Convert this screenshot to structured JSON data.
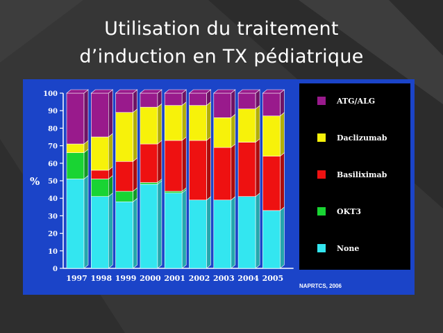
{
  "slide": {
    "title_line1": "Utilisation du traitement",
    "title_line2": "d’induction en TX pédiatrique"
  },
  "colors": {
    "panel_bg": "#1b44c8",
    "legend_bg": "#000000",
    "text": "#ffffff"
  },
  "chart_data": {
    "type": "bar",
    "stacked": true,
    "categories": [
      "1997",
      "1998",
      "1999",
      "2000",
      "2001",
      "2002",
      "2003",
      "2004",
      "2005"
    ],
    "series": [
      {
        "name": "None",
        "color": "#33e6f0",
        "values": [
          51,
          41,
          38,
          48,
          43,
          39,
          39,
          41,
          33
        ]
      },
      {
        "name": "OKT3",
        "color": "#19d433",
        "values": [
          15,
          10,
          6,
          1,
          1,
          0,
          0,
          0,
          0
        ]
      },
      {
        "name": "Basiliximab",
        "color": "#ee1111",
        "values": [
          0,
          5,
          17,
          22,
          29,
          34,
          30,
          31,
          31
        ]
      },
      {
        "name": "Daclizumab",
        "color": "#f7f20a",
        "values": [
          5,
          19,
          28,
          21,
          20,
          20,
          17,
          19,
          23
        ]
      },
      {
        "name": "ATG/ALG",
        "color": "#991a8c",
        "values": [
          29,
          25,
          11,
          8,
          7,
          7,
          14,
          9,
          13
        ]
      }
    ],
    "ylabel": "%",
    "ylim": [
      0,
      100
    ],
    "yticks": [
      "0",
      "10",
      "20",
      "30",
      "40",
      "50",
      "60",
      "70",
      "80",
      "90",
      "100"
    ],
    "legend_position": "right",
    "source": "NAPRTCS, 2006"
  }
}
